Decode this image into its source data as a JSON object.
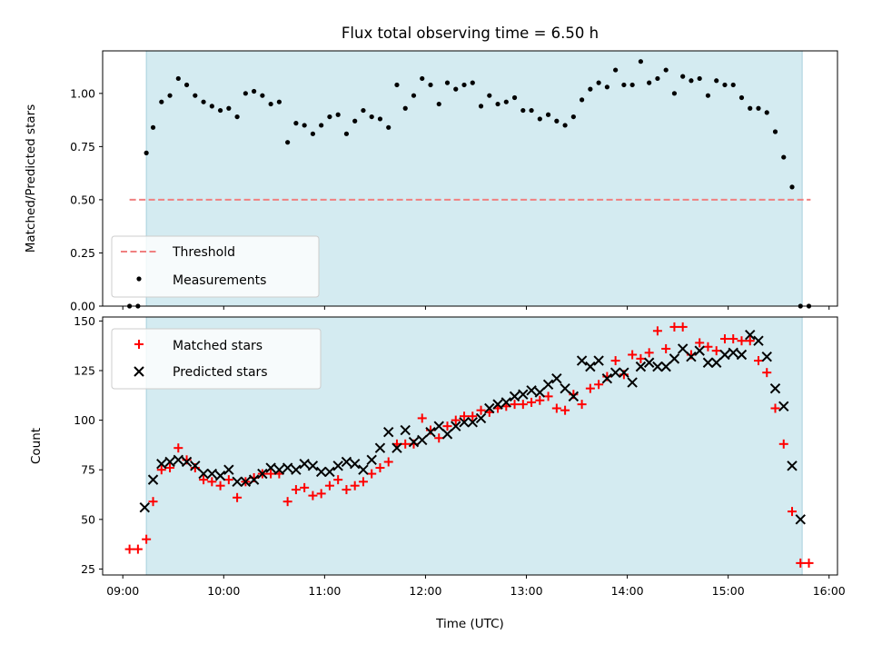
{
  "colors": {
    "observed_span": "#d4ebf1",
    "observed_span_edge": "#a8d0dc",
    "threshold": "#f08080",
    "measurements": "#000000",
    "matched": "#ff0000",
    "predicted": "#000000"
  },
  "chart_data": [
    {
      "type": "scatter",
      "title": "Flux total observing time = 6.50 h",
      "xlabel": "",
      "ylabel": "Matched/Predicted stars",
      "ylim": [
        0,
        1.2
      ],
      "xlim": [
        "08:48",
        "16:05"
      ],
      "observed_span": [
        "09:14",
        "15:44"
      ],
      "yticks": [
        0.0,
        0.25,
        0.5,
        0.75,
        1.0
      ],
      "ytick_labels": [
        "0.00",
        "0.25",
        "0.50",
        "0.75",
        "1.00"
      ],
      "legend": {
        "placement": "lower left",
        "entries": [
          "Threshold",
          "Measurements"
        ]
      },
      "series": [
        {
          "name": "Threshold",
          "kind": "dashed-line",
          "x": [
            "09:04",
            "15:49"
          ],
          "values": [
            0.5,
            0.5
          ]
        },
        {
          "name": "Measurements",
          "kind": "points",
          "x": [
            "09:04",
            "09:09",
            "09:14",
            "09:18",
            "09:23",
            "09:28",
            "09:33",
            "09:38",
            "09:43",
            "09:48",
            "09:53",
            "09:58",
            "10:03",
            "10:08",
            "10:13",
            "10:18",
            "10:23",
            "10:28",
            "10:33",
            "10:38",
            "10:43",
            "10:48",
            "10:53",
            "10:58",
            "11:03",
            "11:08",
            "11:13",
            "11:18",
            "11:23",
            "11:28",
            "11:33",
            "11:38",
            "11:43",
            "11:48",
            "11:53",
            "11:58",
            "12:03",
            "12:08",
            "12:13",
            "12:18",
            "12:23",
            "12:28",
            "12:33",
            "12:38",
            "12:43",
            "12:48",
            "12:53",
            "12:58",
            "13:03",
            "13:08",
            "13:13",
            "13:18",
            "13:23",
            "13:28",
            "13:33",
            "13:38",
            "13:43",
            "13:48",
            "13:53",
            "13:58",
            "14:03",
            "14:08",
            "14:13",
            "14:18",
            "14:23",
            "14:28",
            "14:33",
            "14:38",
            "14:43",
            "14:48",
            "14:53",
            "14:58",
            "15:03",
            "15:08",
            "15:13",
            "15:18",
            "15:23",
            "15:28",
            "15:33",
            "15:38",
            "15:43",
            "15:48"
          ],
          "values": [
            0.0,
            0.0,
            0.72,
            0.84,
            0.96,
            0.99,
            1.07,
            1.04,
            0.99,
            0.96,
            0.94,
            0.92,
            0.93,
            0.89,
            1.0,
            1.01,
            0.99,
            0.95,
            0.96,
            0.77,
            0.86,
            0.85,
            0.81,
            0.85,
            0.89,
            0.9,
            0.81,
            0.87,
            0.92,
            0.89,
            0.88,
            0.84,
            1.04,
            0.93,
            0.99,
            1.07,
            1.04,
            0.95,
            1.05,
            1.02,
            1.04,
            1.05,
            0.94,
            0.99,
            0.95,
            0.96,
            0.98,
            0.92,
            0.92,
            0.88,
            0.9,
            0.87,
            0.85,
            0.89,
            0.97,
            1.02,
            1.05,
            1.03,
            1.11,
            1.04,
            1.04,
            1.15,
            1.05,
            1.07,
            1.11,
            1.0,
            1.08,
            1.06,
            1.07,
            0.99,
            1.06,
            1.04,
            1.04,
            0.98,
            0.93,
            0.93,
            0.91,
            0.82,
            0.7,
            0.56,
            0.0,
            0.0
          ]
        }
      ]
    },
    {
      "type": "scatter",
      "title": "",
      "xlabel": "Time (UTC)",
      "ylabel": "Count",
      "ylim": [
        22,
        152
      ],
      "xlim": [
        "08:48",
        "16:05"
      ],
      "observed_span": [
        "09:14",
        "15:44"
      ],
      "yticks": [
        25,
        50,
        75,
        100,
        125,
        150
      ],
      "xtick_labels": [
        "09:00",
        "10:00",
        "11:00",
        "12:00",
        "13:00",
        "14:00",
        "15:00",
        "16:00"
      ],
      "legend": {
        "placement": "upper left",
        "entries": [
          "Matched stars",
          "Predicted stars"
        ]
      },
      "series": [
        {
          "name": "Matched stars",
          "marker": "plus",
          "x": [
            "09:04",
            "09:09",
            "09:14",
            "09:18",
            "09:23",
            "09:28",
            "09:33",
            "09:38",
            "09:43",
            "09:48",
            "09:53",
            "09:58",
            "10:03",
            "10:08",
            "10:13",
            "10:18",
            "10:23",
            "10:28",
            "10:33",
            "10:38",
            "10:43",
            "10:48",
            "10:53",
            "10:58",
            "11:03",
            "11:08",
            "11:13",
            "11:18",
            "11:23",
            "11:28",
            "11:33",
            "11:38",
            "11:43",
            "11:48",
            "11:53",
            "11:58",
            "12:03",
            "12:08",
            "12:13",
            "12:18",
            "12:23",
            "12:28",
            "12:33",
            "12:38",
            "12:43",
            "12:48",
            "12:53",
            "12:58",
            "13:03",
            "13:08",
            "13:13",
            "13:18",
            "13:23",
            "13:28",
            "13:33",
            "13:38",
            "13:43",
            "13:48",
            "13:53",
            "13:58",
            "14:03",
            "14:08",
            "14:13",
            "14:18",
            "14:23",
            "14:28",
            "14:33",
            "14:38",
            "14:43",
            "14:48",
            "14:53",
            "14:58",
            "15:03",
            "15:08",
            "15:13",
            "15:18",
            "15:23",
            "15:28",
            "15:33",
            "15:38",
            "15:43",
            "15:48"
          ],
          "values": [
            35,
            35,
            40,
            59,
            75,
            76,
            86,
            80,
            76,
            70,
            69,
            67,
            70,
            61,
            69,
            71,
            73,
            73,
            73,
            59,
            65,
            66,
            62,
            63,
            67,
            70,
            65,
            67,
            69,
            73,
            76,
            79,
            88,
            88,
            88,
            101,
            95,
            91,
            97,
            100,
            102,
            102,
            105,
            104,
            106,
            107,
            108,
            108,
            109,
            110,
            112,
            106,
            105,
            113,
            108,
            116,
            118,
            122,
            130,
            123,
            133,
            131,
            134,
            145,
            136,
            147,
            147,
            133,
            139,
            137,
            135,
            141,
            141,
            140,
            140,
            130,
            124,
            106,
            88,
            54,
            28,
            28
          ]
        },
        {
          "name": "Predicted stars",
          "marker": "cross",
          "x": [
            "09:13",
            "09:18",
            "09:23",
            "09:28",
            "09:33",
            "09:38",
            "09:43",
            "09:48",
            "09:53",
            "09:58",
            "10:03",
            "10:08",
            "10:13",
            "10:18",
            "10:23",
            "10:28",
            "10:33",
            "10:38",
            "10:43",
            "10:48",
            "10:53",
            "10:58",
            "11:03",
            "11:08",
            "11:13",
            "11:18",
            "11:23",
            "11:28",
            "11:33",
            "11:38",
            "11:43",
            "11:48",
            "11:53",
            "11:58",
            "12:03",
            "12:08",
            "12:13",
            "12:18",
            "12:23",
            "12:28",
            "12:33",
            "12:38",
            "12:43",
            "12:48",
            "12:53",
            "12:58",
            "13:03",
            "13:08",
            "13:13",
            "13:18",
            "13:23",
            "13:28",
            "13:33",
            "13:38",
            "13:43",
            "13:48",
            "13:53",
            "13:58",
            "14:03",
            "14:08",
            "14:13",
            "14:18",
            "14:23",
            "14:28",
            "14:33",
            "14:38",
            "14:43",
            "14:48",
            "14:53",
            "14:58",
            "15:03",
            "15:08",
            "15:13",
            "15:18",
            "15:23",
            "15:28",
            "15:33",
            "15:38",
            "15:43"
          ],
          "values": [
            56,
            70,
            78,
            79,
            80,
            79,
            77,
            73,
            73,
            72,
            75,
            69,
            69,
            70,
            73,
            76,
            75,
            76,
            75,
            78,
            77,
            74,
            74,
            77,
            79,
            78,
            75,
            80,
            86,
            94,
            86,
            95,
            89,
            90,
            94,
            97,
            93,
            97,
            99,
            99,
            101,
            106,
            108,
            109,
            112,
            113,
            115,
            114,
            118,
            121,
            116,
            112,
            130,
            127,
            130,
            121,
            124,
            124,
            119,
            127,
            129,
            127,
            127,
            131,
            136,
            132,
            135,
            129,
            129,
            133,
            134,
            133,
            143,
            140,
            132,
            116,
            107,
            77,
            50
          ]
        }
      ]
    }
  ]
}
